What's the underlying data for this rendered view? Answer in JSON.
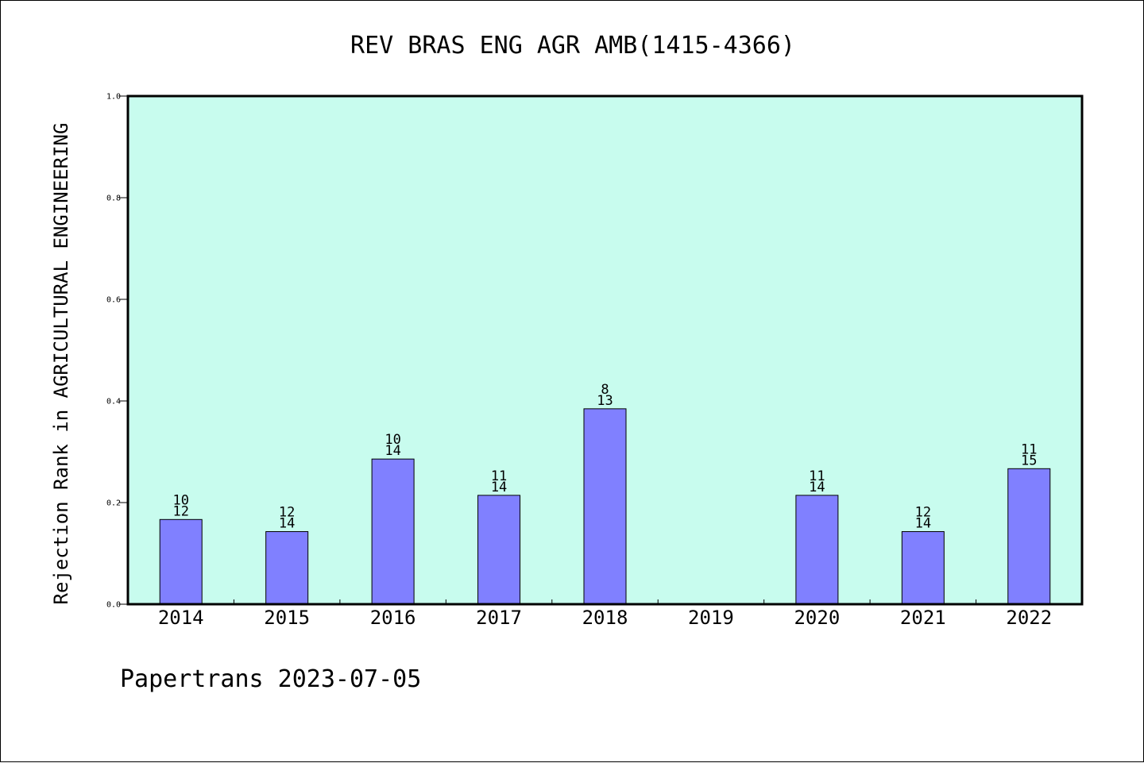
{
  "chart_data": {
    "type": "bar",
    "title": "REV BRAS ENG AGR AMB(1415-4366)",
    "ylabel": "Rejection Rank in AGRICULTURAL ENGINEERING",
    "xlabel": "",
    "categories": [
      "2014",
      "2015",
      "2016",
      "2017",
      "2018",
      "2019",
      "2020",
      "2021",
      "2022"
    ],
    "values": [
      0.1667,
      0.1429,
      0.2857,
      0.2143,
      0.3846,
      null,
      0.2143,
      0.1429,
      0.2667
    ],
    "label_top": [
      "10",
      "12",
      "10",
      "11",
      "8",
      "",
      "11",
      "12",
      "11"
    ],
    "label_bottom": [
      "12",
      "14",
      "14",
      "14",
      "13",
      "",
      "14",
      "14",
      "15"
    ],
    "ylim": [
      0,
      1.0
    ],
    "yticks": [
      "0.0",
      "0.2",
      "0.4",
      "0.6",
      "0.8",
      "1.0"
    ],
    "grid": false,
    "colors": {
      "plot_background": "#c8fcee",
      "bar_fill": "#8080ff",
      "bar_stroke": "#000000"
    }
  },
  "footer": "Papertrans 2023-07-05"
}
